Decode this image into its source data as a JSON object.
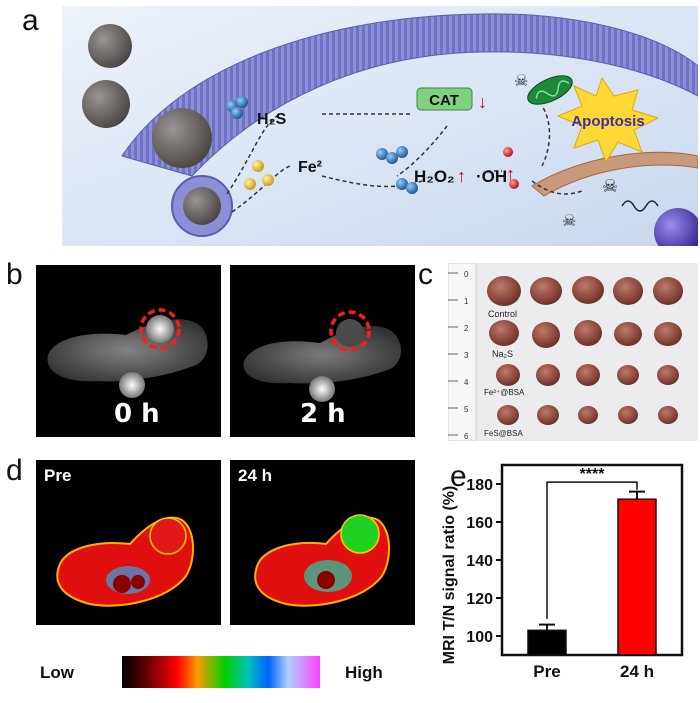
{
  "panels": {
    "a": {
      "letter": "a",
      "labels": {
        "h2s": "H₂S",
        "cat": "CAT",
        "fe": "Fe²",
        "h2o2": "H₂O₂",
        "oh": "·OH",
        "apoptosis": "Apoptosis"
      }
    },
    "b": {
      "letter": "b",
      "images": [
        {
          "time": "0 h"
        },
        {
          "time": "2 h"
        }
      ]
    },
    "c": {
      "letter": "c",
      "groups": [
        "Control",
        "Na₂S",
        "Fe²⁺@BSA",
        "FeS@BSA"
      ],
      "ruler_marks": [
        "0",
        "1",
        "2",
        "3",
        "4",
        "5",
        "6"
      ]
    },
    "d": {
      "letter": "d",
      "images": [
        {
          "label": "Pre"
        },
        {
          "label": "24 h"
        }
      ],
      "colorbar": {
        "low": "Low",
        "high": "High"
      }
    },
    "e": {
      "letter": "e"
    }
  },
  "chart_data": {
    "type": "bar",
    "categories": [
      "Pre",
      "24 h"
    ],
    "values": [
      103,
      172
    ],
    "errors": [
      3,
      4
    ],
    "ylabel": "MRI T/N signal ratio (%)",
    "ylim": [
      90,
      190
    ],
    "yticks": [
      100,
      120,
      140,
      160,
      180
    ],
    "colors": [
      "#000000",
      "#ff0000"
    ],
    "significance": "****"
  }
}
